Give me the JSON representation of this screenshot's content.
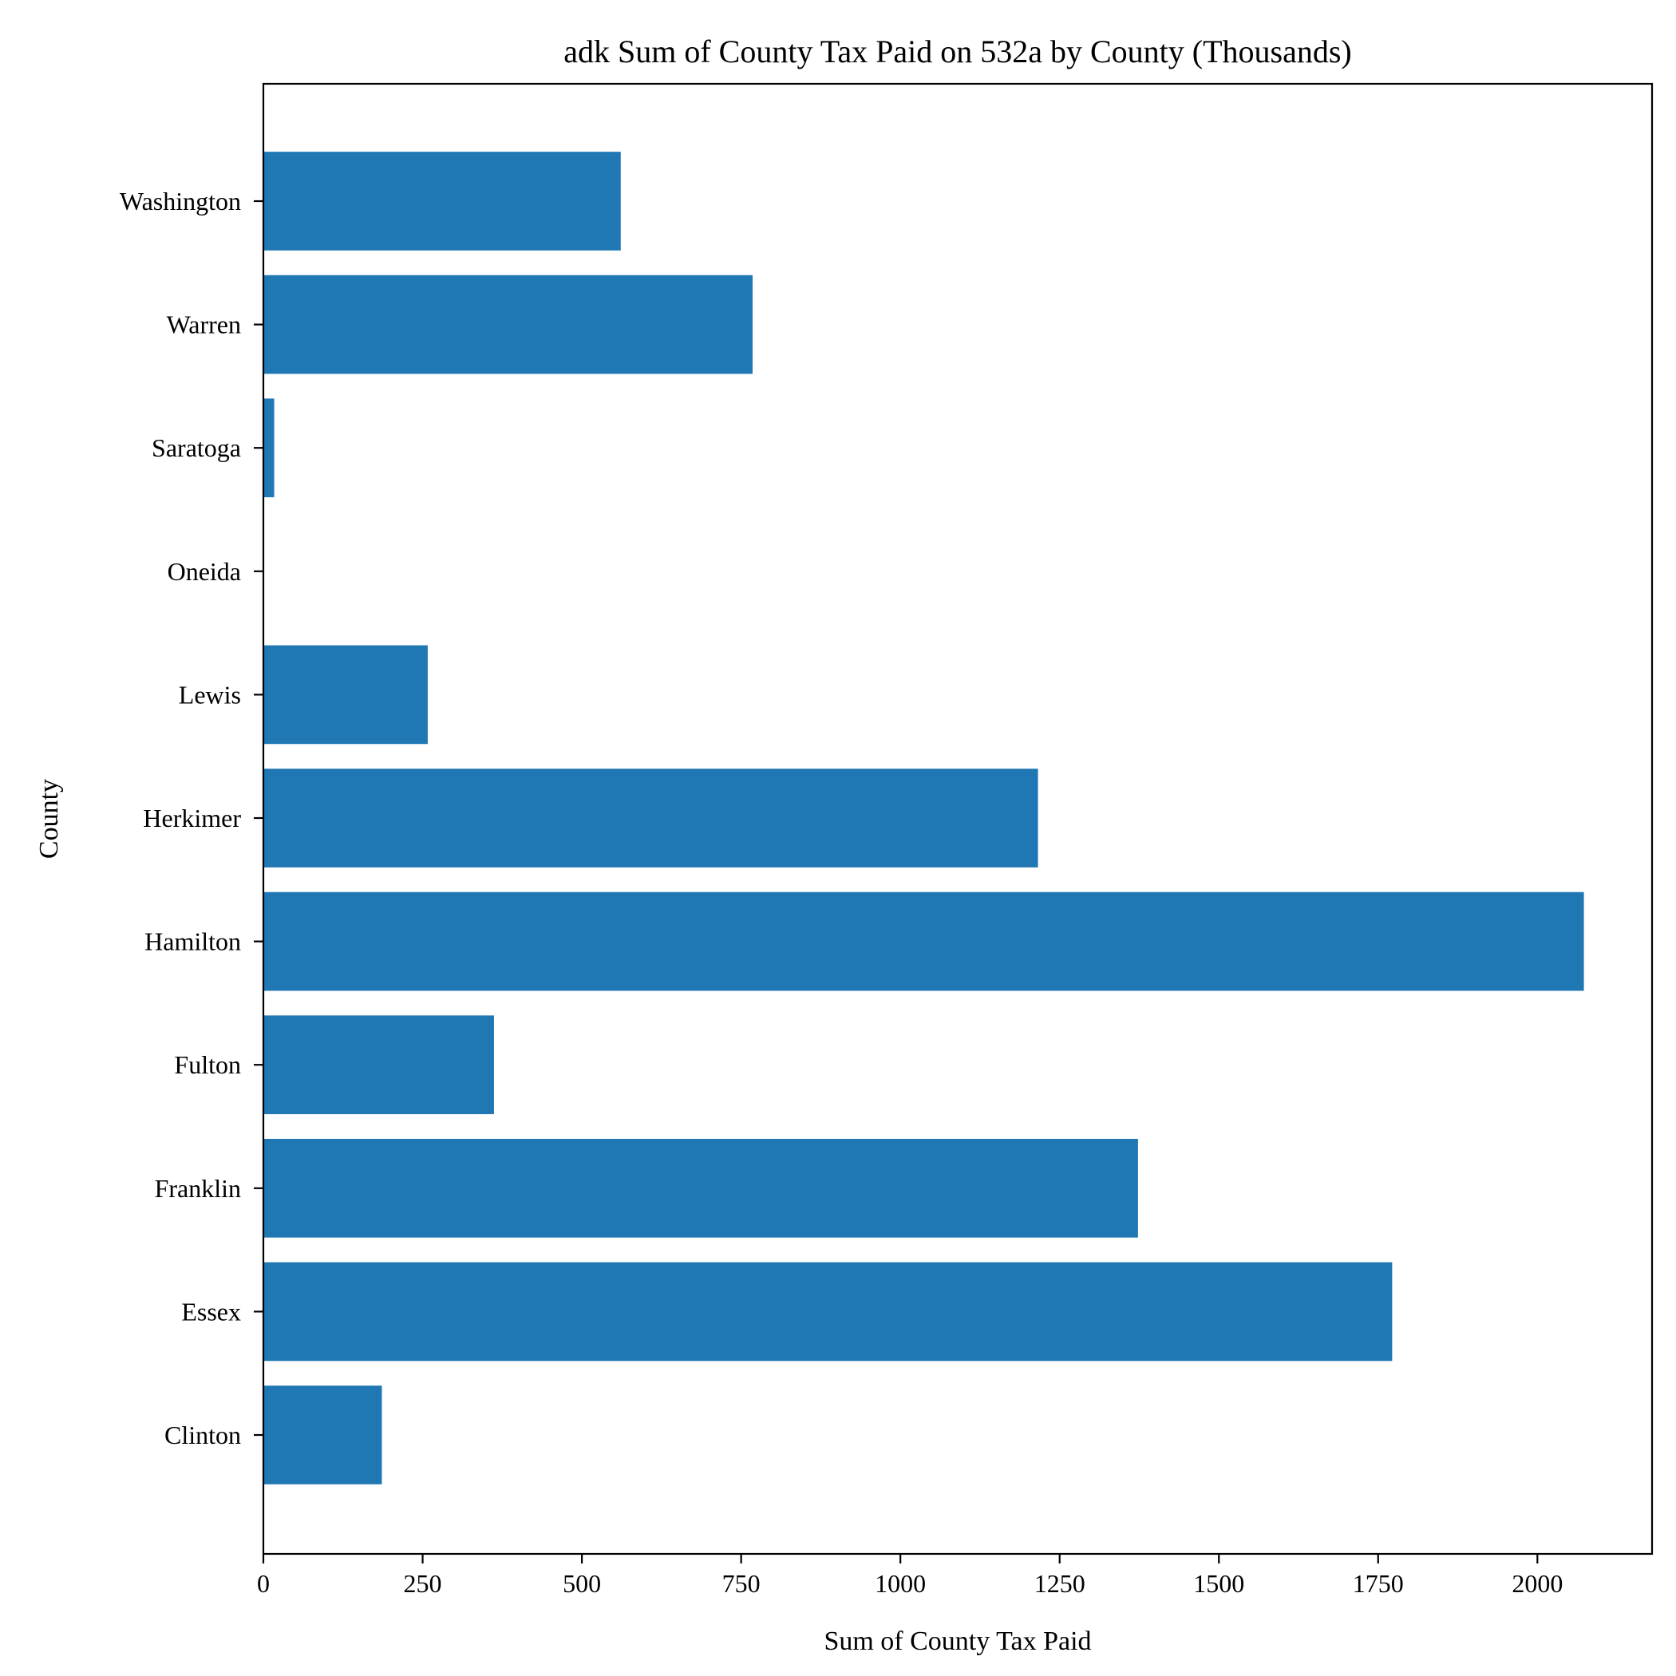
{
  "chart_data": {
    "type": "bar",
    "orientation": "horizontal",
    "title": "adk Sum of County Tax Paid on 532a by County (Thousands)",
    "xlabel": "Sum of County Tax Paid",
    "ylabel": "County",
    "categories": [
      "Clinton",
      "Essex",
      "Franklin",
      "Fulton",
      "Hamilton",
      "Herkimer",
      "Lewis",
      "Oneida",
      "Saratoga",
      "Warren",
      "Washington"
    ],
    "values": [
      186,
      1772,
      1373,
      362,
      2073,
      1216,
      258,
      0,
      17,
      768,
      561
    ],
    "xlim": [
      0,
      2180
    ],
    "xticks": [
      0,
      250,
      500,
      750,
      1000,
      1250,
      1500,
      1750,
      2000
    ],
    "bar_color": "#1f77b4",
    "grid": false,
    "legend": "none"
  }
}
